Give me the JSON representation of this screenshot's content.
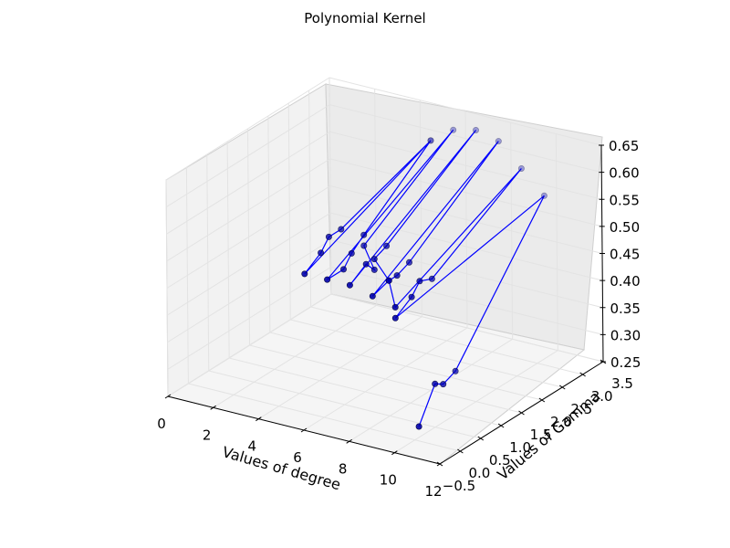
{
  "chart_data": {
    "type": "line",
    "title": "Polynomial Kernel",
    "xlabel": "Values of degree",
    "ylabel": "Values of Gamma",
    "zlabel": "",
    "xlim": [
      0,
      12
    ],
    "ylim": [
      -0.5,
      3.5
    ],
    "zlim": [
      0.25,
      0.65
    ],
    "x_ticks": [
      "0",
      "2",
      "4",
      "6",
      "8",
      "10",
      "12"
    ],
    "y_ticks": [
      "−0.5",
      "0.0",
      "0.5",
      "1.0",
      "1.5",
      "2.0",
      "2.5",
      "3.0",
      "3.5"
    ],
    "z_ticks": [
      "0.25",
      "0.30",
      "0.35",
      "0.40",
      "0.45",
      "0.50",
      "0.55",
      "0.60",
      "0.65"
    ],
    "grid": true,
    "marker": "circle",
    "series_color": "#0000ff",
    "marker_face": "#0000aa",
    "series": [
      {
        "x": [
          10,
          10,
          10,
          10,
          10,
          9,
          9,
          9,
          9,
          9,
          9,
          8,
          8,
          8,
          8,
          8,
          8,
          7,
          7,
          7,
          7,
          7,
          7,
          6,
          6,
          6,
          6,
          6,
          6,
          5,
          5,
          5,
          5,
          5,
          5
        ],
        "y": [
          0.1,
          0.5,
          0.7,
          1.0,
          3.2,
          0.1,
          0.5,
          0.7,
          1.0,
          3.2,
          0.1,
          0.5,
          0.7,
          1.0,
          3.2,
          0.1,
          0.5,
          0.7,
          1.0,
          3.2,
          0.1,
          0.5,
          0.7,
          1.0,
          3.2,
          0.1,
          0.5,
          0.7,
          1.0,
          3.2,
          0.1,
          0.5,
          0.7,
          1.0,
          3.2
        ],
        "z": [
          0.27,
          0.33,
          0.32,
          0.33,
          0.55,
          0.46,
          0.48,
          0.5,
          0.49,
          0.59,
          0.48,
          0.5,
          0.5,
          0.51,
          0.63,
          0.49,
          0.5,
          0.52,
          0.53,
          0.64,
          0.5,
          0.52,
          0.5,
          0.52,
          0.63,
          0.5,
          0.5,
          0.52,
          0.54,
          0.6,
          0.5,
          0.52,
          0.54,
          0.54,
          0.6
        ]
      }
    ]
  }
}
